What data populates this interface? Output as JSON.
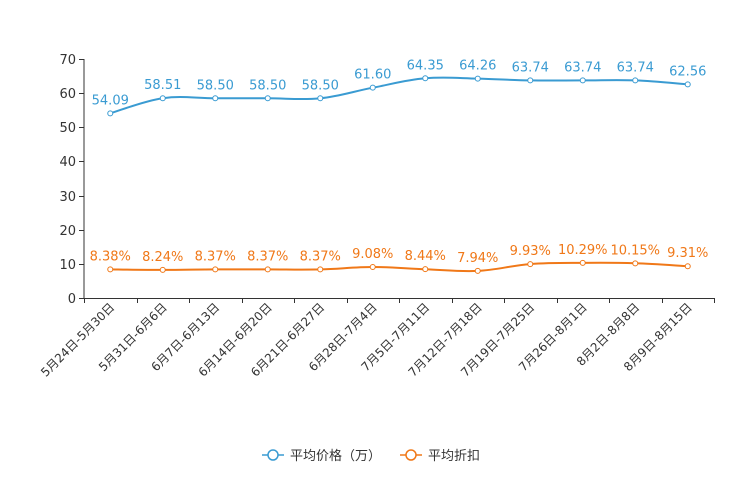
{
  "chart_data": {
    "type": "line",
    "categories": [
      "5月24日-5月30日",
      "5月31日-6月6日",
      "6月7日-6月13日",
      "6月14日-6月20日",
      "6月21日-6月27日",
      "6月28日-7月4日",
      "7月5日-7月11日",
      "7月12日-7月18日",
      "7月19日-7月25日",
      "7月26日-8月1日",
      "8月2日-8月8日",
      "8月9日-8月15日"
    ],
    "ylim": [
      0,
      70
    ],
    "yticks": [
      0,
      10,
      20,
      30,
      40,
      50,
      60,
      70
    ],
    "series": [
      {
        "name": "平均价格（万）",
        "color": "#3a9bd2",
        "values": [
          54.09,
          58.51,
          58.5,
          58.5,
          58.5,
          61.6,
          64.35,
          64.26,
          63.74,
          63.74,
          63.74,
          62.56
        ],
        "labels": [
          "54.09",
          "58.51",
          "58.50",
          "58.50",
          "58.50",
          "61.60",
          "64.35",
          "64.26",
          "63.74",
          "63.74",
          "63.74",
          "62.56"
        ]
      },
      {
        "name": "平均折扣",
        "color": "#f07818",
        "values": [
          8.38,
          8.24,
          8.37,
          8.37,
          8.37,
          9.08,
          8.44,
          7.94,
          9.93,
          10.29,
          10.15,
          9.31
        ],
        "labels": [
          "8.38%",
          "8.24%",
          "8.37%",
          "8.37%",
          "8.37%",
          "9.08%",
          "8.44%",
          "7.94%",
          "9.93%",
          "10.29%",
          "10.15%",
          "9.31%"
        ]
      }
    ],
    "legend_position": "bottom-center"
  }
}
